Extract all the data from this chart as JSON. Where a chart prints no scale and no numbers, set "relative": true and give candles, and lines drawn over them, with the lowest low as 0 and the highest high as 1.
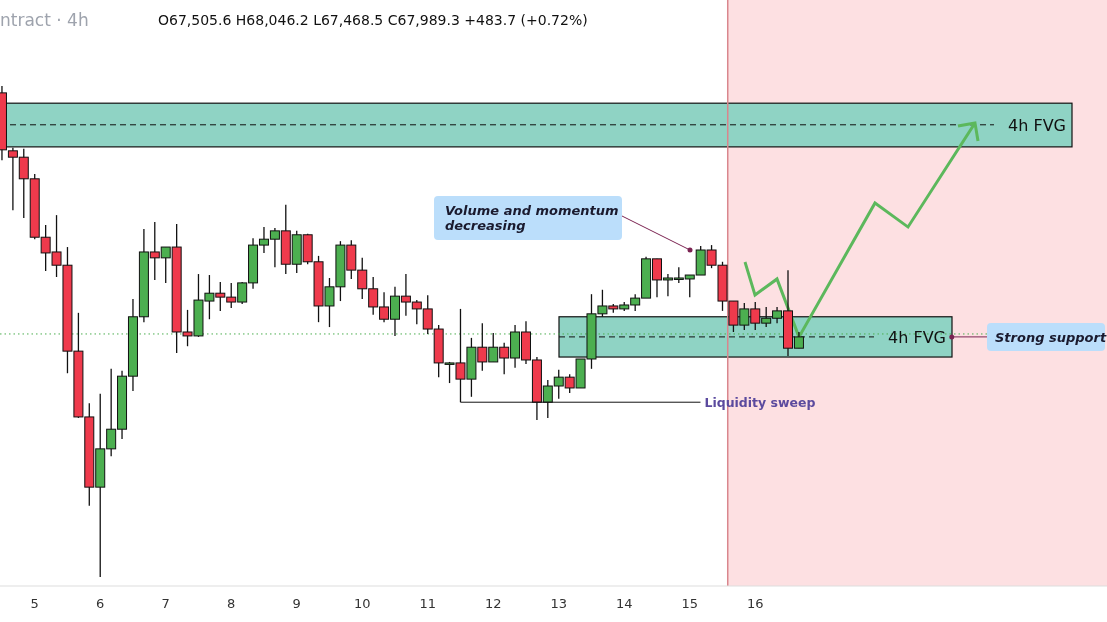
{
  "chart_data": {
    "type": "candlestick",
    "title": "ntract · 4h",
    "subtitle": "O67,505.6 H68,046.2 L67,468.5 C67,989.3 +483.7 (+0.72%)",
    "relative": true,
    "x": [
      4.5,
      4.667,
      4.833,
      5,
      5.167,
      5.333,
      5.5,
      5.667,
      5.833,
      6,
      6.167,
      6.333,
      6.5,
      6.667,
      6.833,
      7,
      7.167,
      7.333,
      7.5,
      7.667,
      7.833,
      8,
      8.167,
      8.333,
      8.5,
      8.667,
      8.833,
      9,
      9.167,
      9.333,
      9.5,
      9.667,
      9.833,
      10,
      10.167,
      10.333,
      10.5,
      10.667,
      10.833,
      11,
      11.167,
      11.333,
      11.5,
      11.667,
      11.833,
      12,
      12.167,
      12.333,
      12.5,
      12.667,
      12.833,
      13,
      13.167,
      13.333,
      13.5,
      13.667,
      13.833,
      14,
      14.167,
      14.333,
      14.5,
      14.667,
      14.833,
      15,
      15.167,
      15.333,
      15.5,
      15.667,
      15.833,
      16,
      16.167,
      16.333,
      16.5,
      16.667
    ],
    "ohlc": [
      [
        0.986,
        1,
        0.849,
        0.87
      ],
      [
        0.868,
        0.874,
        0.747,
        0.855
      ],
      [
        0.855,
        0.872,
        0.731,
        0.811
      ],
      [
        0.811,
        0.821,
        0.688,
        0.692
      ],
      [
        0.692,
        0.717,
        0.623,
        0.66
      ],
      [
        0.662,
        0.737,
        0.611,
        0.635
      ],
      [
        0.635,
        0.672,
        0.415,
        0.46
      ],
      [
        0.46,
        0.538,
        0.324,
        0.326
      ],
      [
        0.326,
        0.354,
        0.145,
        0.183
      ],
      [
        0.183,
        0.373,
        0,
        0.261
      ],
      [
        0.261,
        0.424,
        0.246,
        0.301
      ],
      [
        0.301,
        0.42,
        0.281,
        0.409
      ],
      [
        0.409,
        0.566,
        0.379,
        0.53
      ],
      [
        0.53,
        0.709,
        0.519,
        0.662
      ],
      [
        0.662,
        0.723,
        0.605,
        0.65
      ],
      [
        0.65,
        0.672,
        0.599,
        0.672
      ],
      [
        0.672,
        0.719,
        0.456,
        0.499
      ],
      [
        0.499,
        0.544,
        0.47,
        0.491
      ],
      [
        0.491,
        0.617,
        0.489,
        0.564
      ],
      [
        0.562,
        0.615,
        0.525,
        0.578
      ],
      [
        0.578,
        0.601,
        0.542,
        0.57
      ],
      [
        0.57,
        0.599,
        0.548,
        0.56
      ],
      [
        0.56,
        0.601,
        0.556,
        0.599
      ],
      [
        0.599,
        0.69,
        0.587,
        0.676
      ],
      [
        0.676,
        0.713,
        0.66,
        0.688
      ],
      [
        0.688,
        0.711,
        0.631,
        0.705
      ],
      [
        0.705,
        0.758,
        0.617,
        0.637
      ],
      [
        0.637,
        0.705,
        0.619,
        0.697
      ],
      [
        0.697,
        0.699,
        0.637,
        0.642
      ],
      [
        0.642,
        0.654,
        0.519,
        0.552
      ],
      [
        0.552,
        0.609,
        0.509,
        0.591
      ],
      [
        0.591,
        0.684,
        0.562,
        0.676
      ],
      [
        0.676,
        0.686,
        0.607,
        0.625
      ],
      [
        0.625,
        0.65,
        0.566,
        0.587
      ],
      [
        0.587,
        0.611,
        0.534,
        0.55
      ],
      [
        0.55,
        0.58,
        0.519,
        0.525
      ],
      [
        0.525,
        0.591,
        0.491,
        0.572
      ],
      [
        0.572,
        0.617,
        0.532,
        0.56
      ],
      [
        0.56,
        0.564,
        0.515,
        0.546
      ],
      [
        0.546,
        0.574,
        0.495,
        0.505
      ],
      [
        0.505,
        0.513,
        0.407,
        0.436
      ],
      [
        0.436,
        0.438,
        0.395,
        0.436
      ],
      [
        0.436,
        0.546,
        0.356,
        0.403
      ],
      [
        0.403,
        0.487,
        0.367,
        0.468
      ],
      [
        0.468,
        0.517,
        0.42,
        0.438
      ],
      [
        0.438,
        0.497,
        0.438,
        0.468
      ],
      [
        0.468,
        0.477,
        0.413,
        0.446
      ],
      [
        0.446,
        0.513,
        0.426,
        0.499
      ],
      [
        0.499,
        0.521,
        0.434,
        0.442
      ],
      [
        0.442,
        0.448,
        0.32,
        0.356
      ],
      [
        0.356,
        0.401,
        0.324,
        0.389
      ],
      [
        0.389,
        0.422,
        0.363,
        0.407
      ],
      [
        0.407,
        0.413,
        0.375,
        0.385
      ],
      [
        0.385,
        0.444,
        0.385,
        0.444
      ],
      [
        0.444,
        0.576,
        0.424,
        0.536
      ],
      [
        0.536,
        0.585,
        0.53,
        0.552
      ],
      [
        0.552,
        0.556,
        0.538,
        0.546
      ],
      [
        0.546,
        0.56,
        0.542,
        0.554
      ],
      [
        0.554,
        0.576,
        0.542,
        0.568
      ],
      [
        0.568,
        0.652,
        0.568,
        0.648
      ],
      [
        0.648,
        0.648,
        0.57,
        0.605
      ],
      [
        0.605,
        0.617,
        0.572,
        0.609
      ],
      [
        0.607,
        0.631,
        0.599,
        0.609
      ],
      [
        0.607,
        0.615,
        0.57,
        0.615
      ],
      [
        0.615,
        0.674,
        0.615,
        0.666
      ],
      [
        0.666,
        0.676,
        0.629,
        0.635
      ],
      [
        0.635,
        0.642,
        0.542,
        0.562
      ],
      [
        0.562,
        0.562,
        0.499,
        0.513
      ],
      [
        0.513,
        0.558,
        0.503,
        0.546
      ],
      [
        0.546,
        0.56,
        0.503,
        0.517
      ],
      [
        0.517,
        0.55,
        0.509,
        0.527
      ],
      [
        0.527,
        0.55,
        0.517,
        0.542
      ],
      [
        0.542,
        0.625,
        0.45,
        0.466
      ],
      [
        0.466,
        0.499,
        0.466,
        0.489
      ]
    ],
    "xlim": [
      4.47,
      21.37
    ],
    "xticks": [
      5,
      6,
      7,
      8,
      9,
      10,
      11,
      12,
      13,
      14,
      15,
      16
    ],
    "grid": false,
    "bands": [
      {
        "axis": "y",
        "from": 0.876,
        "to": 0.965,
        "label": "4h FVG",
        "color": "#8fd3c4"
      },
      {
        "axis": "y",
        "from": 0.448,
        "to": 0.53,
        "label": "4h FVG",
        "color": "#8fd3c4"
      },
      {
        "axis": "x",
        "from": 15.58,
        "to": 21.37,
        "color": "#fde0e2"
      }
    ],
    "ref_lines": [
      {
        "axis": "y",
        "value": 0.495,
        "color": "#4caf50",
        "line_style": "dotted"
      },
      {
        "axis": "x",
        "value": 15.58,
        "color": "#d9868d",
        "line_style": "solid"
      },
      {
        "axis": "y",
        "value": 0.921,
        "color": "#111111",
        "line_style": "dashed"
      },
      {
        "axis": "y",
        "value": 0.489,
        "color": "#111111",
        "line_style": "dashed"
      }
    ],
    "annotations": [
      "Volume and momentum decreasing",
      {
        "text": "Liquidity sweep",
        "x": 11.5,
        "y": 0.356
      },
      {
        "text": "Strong support",
        "x": 19,
        "y": 0.489
      }
    ]
  }
}
